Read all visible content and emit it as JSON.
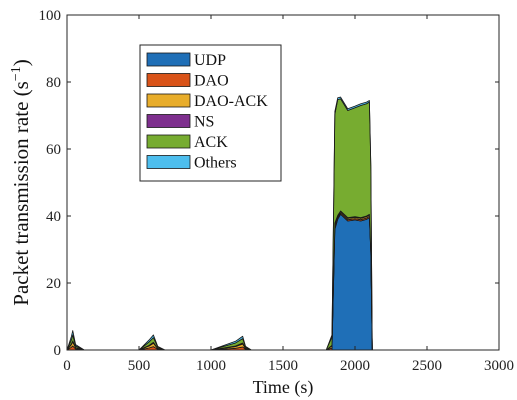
{
  "chart_data": {
    "type": "area",
    "stacked": true,
    "xlabel": "Time (s)",
    "ylabel": "Packet transmission rate (s",
    "ylabel_sup": "−1",
    "ylabel_close": ")",
    "xlim": [
      0,
      3000
    ],
    "ylim": [
      0,
      100
    ],
    "xticks": [
      0,
      500,
      1000,
      1500,
      2000,
      2500,
      3000
    ],
    "yticks": [
      0,
      20,
      40,
      60,
      80,
      100
    ],
    "grid": false,
    "legend_position": "upper-left-inside",
    "x": [
      0,
      30,
      40,
      60,
      120,
      500,
      570,
      600,
      630,
      680,
      1000,
      1170,
      1220,
      1240,
      1280,
      1800,
      1840,
      1860,
      1880,
      1900,
      1950,
      2000,
      2040,
      2080,
      2100,
      2110,
      2120,
      3000
    ],
    "series": [
      {
        "name": "UDP",
        "color": "#1f6fb7",
        "values": [
          0,
          0,
          0,
          0,
          0,
          0,
          0,
          0,
          0,
          0,
          0,
          0,
          0,
          0,
          0,
          0,
          0,
          36,
          39,
          40.5,
          38.5,
          38.8,
          38.5,
          39,
          39.5,
          29,
          0,
          0
        ]
      },
      {
        "name": "DAO",
        "color": "#d95319",
        "values": [
          0,
          0.8,
          1.2,
          0.3,
          0,
          0,
          0.6,
          1.0,
          0.2,
          0,
          0,
          0.5,
          0.9,
          0.2,
          0,
          0,
          0.6,
          0.8,
          0.5,
          0.4,
          0.4,
          0.4,
          0.4,
          0.4,
          0.4,
          0.3,
          0,
          0
        ]
      },
      {
        "name": "DAO-ACK",
        "color": "#e8ad2b",
        "values": [
          0,
          0.8,
          1.2,
          0.3,
          0,
          0,
          0.6,
          1.0,
          0.2,
          0,
          0,
          0.5,
          0.9,
          0.2,
          0,
          0,
          0.6,
          0.8,
          0.5,
          0.4,
          0.4,
          0.4,
          0.4,
          0.4,
          0.4,
          0.3,
          0,
          0
        ]
      },
      {
        "name": "NS",
        "color": "#7e2f8e",
        "values": [
          0,
          0.2,
          0.3,
          0.1,
          0,
          0,
          0.2,
          0.3,
          0.1,
          0,
          0,
          0.2,
          0.3,
          0.1,
          0,
          0,
          0.2,
          0.3,
          0.2,
          0.2,
          0.2,
          0.2,
          0.2,
          0.2,
          0.2,
          0.2,
          0,
          0
        ]
      },
      {
        "name": "ACK",
        "color": "#77ac30",
        "values": [
          0,
          1.2,
          1.8,
          0.5,
          0,
          0,
          1.0,
          1.4,
          0.4,
          0,
          0,
          0.9,
          1.3,
          0.4,
          0,
          0,
          2.5,
          32.5,
          34.5,
          33.5,
          32,
          32.5,
          33.5,
          33.5,
          33.5,
          25,
          0,
          0
        ]
      },
      {
        "name": "Others",
        "color": "#4dbeee",
        "values": [
          0,
          1.0,
          1.3,
          0.4,
          0,
          0,
          0.6,
          0.8,
          0.2,
          0,
          0,
          0.5,
          0.7,
          0.2,
          0,
          0,
          0.6,
          0.8,
          0.6,
          0.5,
          0.5,
          0.5,
          0.5,
          0.5,
          0.5,
          0.4,
          0,
          0
        ]
      }
    ]
  }
}
